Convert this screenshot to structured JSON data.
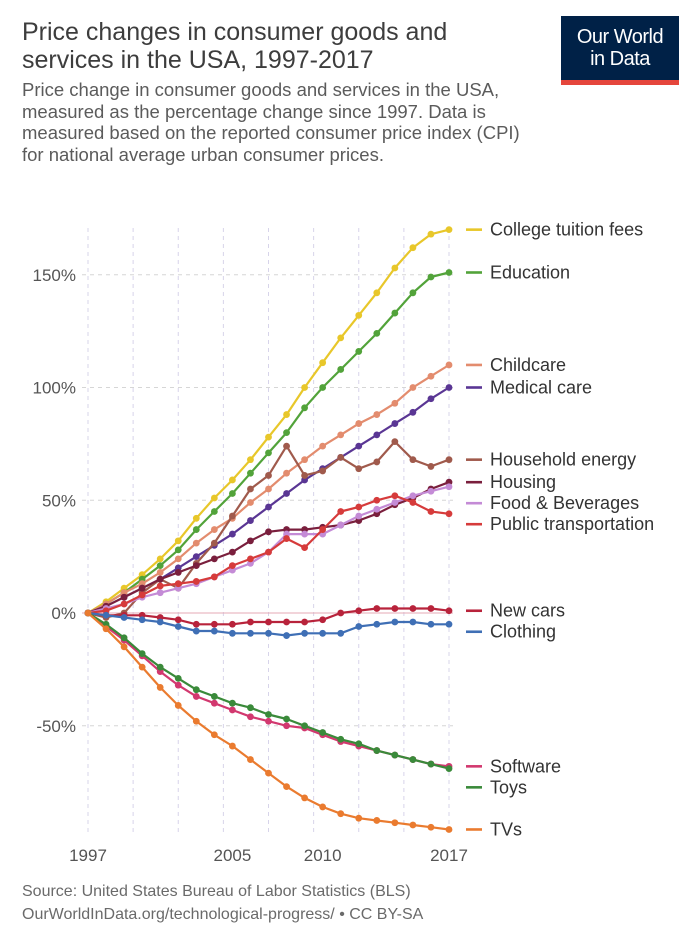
{
  "header": {
    "title": "Price changes in consumer goods and services in the USA, 1997-2017",
    "subtitle": "Price change in consumer goods and services in the USA, measured as the percentage change since 1997. Data is measured based on the reported consumer price index (CPI) for national average urban consumer prices."
  },
  "logo": {
    "line1": "Our World",
    "line2": "in Data",
    "bg": "#002147",
    "accent": "#e5463c"
  },
  "source": {
    "line1": "Source: United States Bureau of Labor Statistics (BLS)",
    "line2": "OurWorldInData.org/technological-progress/ • CC BY-SA"
  },
  "chart_data": {
    "type": "line",
    "title": "Price changes in consumer goods and services in the USA, 1997-2017",
    "xlabel": "",
    "ylabel": "",
    "x": [
      1997,
      1998,
      1999,
      2000,
      2001,
      2002,
      2003,
      2004,
      2005,
      2006,
      2007,
      2008,
      2009,
      2010,
      2011,
      2012,
      2013,
      2014,
      2015,
      2016,
      2017
    ],
    "xlim": [
      1997,
      2017
    ],
    "ylim": [
      -100,
      170
    ],
    "x_ticks": [
      1997,
      2005,
      2010,
      2017
    ],
    "y_ticks": [
      {
        "value": 150,
        "label": "150%"
      },
      {
        "value": 100,
        "label": "100%"
      },
      {
        "value": 50,
        "label": "50%"
      },
      {
        "value": 0,
        "label": "0%"
      },
      {
        "value": -50,
        "label": "-50%"
      }
    ],
    "grid": true,
    "legend": "right",
    "series": [
      {
        "name": "College tuition fees",
        "color": "#e8c72a",
        "values": [
          0,
          5,
          11,
          17,
          24,
          32,
          42,
          51,
          59,
          68,
          78,
          88,
          100,
          111,
          122,
          132,
          142,
          153,
          162,
          168,
          170
        ]
      },
      {
        "name": "Education",
        "color": "#52a33a",
        "values": [
          0,
          4,
          9,
          15,
          21,
          28,
          37,
          45,
          53,
          62,
          71,
          80,
          91,
          100,
          108,
          116,
          124,
          133,
          142,
          149,
          151
        ]
      },
      {
        "name": "Childcare",
        "color": "#e38c6e",
        "values": [
          0,
          4,
          9,
          13,
          18,
          24,
          31,
          37,
          42,
          49,
          55,
          62,
          68,
          74,
          79,
          84,
          88,
          93,
          100,
          105,
          110
        ]
      },
      {
        "name": "Medical care",
        "color": "#5a3694",
        "values": [
          0,
          3,
          7,
          11,
          15,
          20,
          25,
          30,
          35,
          41,
          47,
          53,
          59,
          64,
          69,
          74,
          79,
          84,
          89,
          95,
          100
        ]
      },
      {
        "name": "Household energy",
        "color": "#a05a4c",
        "values": [
          0,
          -2,
          0,
          9,
          15,
          11,
          22,
          31,
          43,
          55,
          61,
          74,
          61,
          63,
          69,
          64,
          67,
          76,
          68,
          65,
          68
        ]
      },
      {
        "name": "Housing",
        "color": "#7a1f3d",
        "values": [
          0,
          3,
          7,
          11,
          15,
          18,
          21,
          24,
          27,
          32,
          36,
          37,
          37,
          38,
          39,
          41,
          44,
          48,
          51,
          55,
          58
        ]
      },
      {
        "name": "Food & Beverages",
        "color": "#c48bd6",
        "values": [
          0,
          2,
          4,
          7,
          9,
          11,
          13,
          16,
          19,
          22,
          27,
          35,
          35,
          35,
          39,
          43,
          46,
          49,
          52,
          54,
          56
        ]
      },
      {
        "name": "Public transportation",
        "color": "#d63b3b",
        "values": [
          0,
          1,
          4,
          8,
          12,
          13,
          14,
          16,
          21,
          24,
          27,
          33,
          29,
          37,
          45,
          47,
          50,
          52,
          49,
          45,
          44
        ]
      },
      {
        "name": "New cars",
        "color": "#b8233b",
        "values": [
          0,
          -1,
          -1,
          -1,
          -2,
          -3,
          -5,
          -5,
          -5,
          -4,
          -4,
          -4,
          -4,
          -3,
          0,
          1,
          2,
          2,
          2,
          2,
          1
        ]
      },
      {
        "name": "Clothing",
        "color": "#3f6fb5",
        "values": [
          0,
          -1,
          -2,
          -3,
          -4,
          -6,
          -8,
          -8,
          -9,
          -9,
          -9,
          -10,
          -9,
          -9,
          -9,
          -6,
          -5,
          -4,
          -4,
          -5,
          -5
        ]
      },
      {
        "name": "Software",
        "color": "#d2386f",
        "values": [
          0,
          -6,
          -12,
          -19,
          -26,
          -32,
          -37,
          -40,
          -43,
          -46,
          -48,
          -50,
          -51,
          -54,
          -57,
          -59,
          -61,
          -63,
          -65,
          -67,
          -68
        ]
      },
      {
        "name": "Toys",
        "color": "#3a8a3a",
        "values": [
          0,
          -5,
          -11,
          -18,
          -24,
          -29,
          -34,
          -37,
          -40,
          -42,
          -45,
          -47,
          -50,
          -53,
          -56,
          -58,
          -61,
          -63,
          -65,
          -67,
          -69
        ]
      },
      {
        "name": "TVs",
        "color": "#ea7b2f",
        "values": [
          0,
          -7,
          -15,
          -24,
          -33,
          -41,
          -48,
          -54,
          -59,
          -65,
          -71,
          -77,
          -82,
          -86,
          -89,
          -91,
          -92,
          -93,
          -94,
          -95,
          -96
        ]
      }
    ]
  }
}
